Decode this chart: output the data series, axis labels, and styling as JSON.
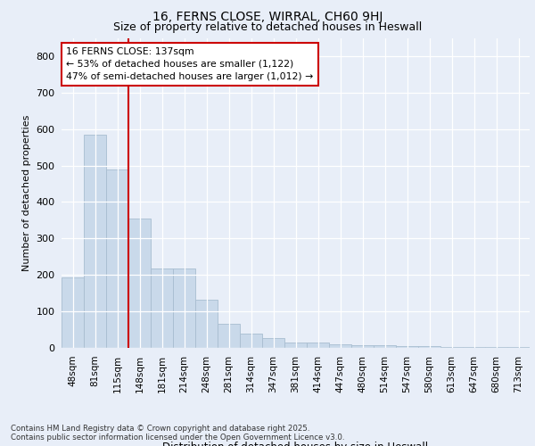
{
  "title": "16, FERNS CLOSE, WIRRAL, CH60 9HJ",
  "subtitle": "Size of property relative to detached houses in Heswall",
  "xlabel": "Distribution of detached houses by size in Heswall",
  "ylabel": "Number of detached properties",
  "categories": [
    "48sqm",
    "81sqm",
    "115sqm",
    "148sqm",
    "181sqm",
    "214sqm",
    "248sqm",
    "281sqm",
    "314sqm",
    "347sqm",
    "381sqm",
    "414sqm",
    "447sqm",
    "480sqm",
    "514sqm",
    "547sqm",
    "580sqm",
    "613sqm",
    "647sqm",
    "680sqm",
    "713sqm"
  ],
  "values": [
    193,
    585,
    488,
    355,
    218,
    218,
    133,
    65,
    40,
    28,
    15,
    15,
    10,
    8,
    8,
    5,
    5,
    3,
    3,
    3,
    3
  ],
  "bar_color": "#c9d9ea",
  "bar_edge_color": "#a8bdd0",
  "vline_x": 2.5,
  "vline_color": "#cc0000",
  "annotation_text": "16 FERNS CLOSE: 137sqm\n← 53% of detached houses are smaller (1,122)\n47% of semi-detached houses are larger (1,012) →",
  "annotation_box_color": "#ffffff",
  "annotation_box_edge": "#cc0000",
  "ylim": [
    0,
    850
  ],
  "yticks": [
    0,
    100,
    200,
    300,
    400,
    500,
    600,
    700,
    800
  ],
  "footer": "Contains HM Land Registry data © Crown copyright and database right 2025.\nContains public sector information licensed under the Open Government Licence v3.0.",
  "bg_color": "#e8eef8",
  "plot_bg_color": "#e8eef8",
  "grid_color": "#ffffff",
  "title_fontsize": 10,
  "subtitle_fontsize": 9
}
